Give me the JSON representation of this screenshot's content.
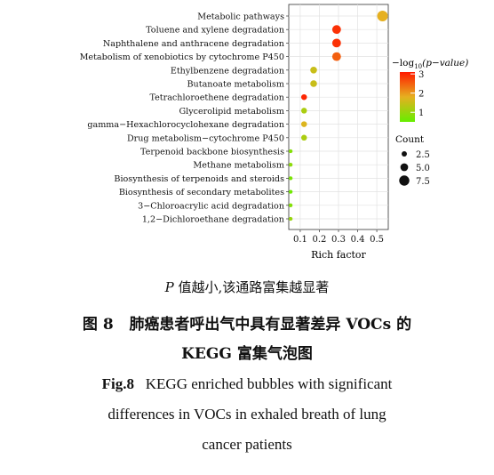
{
  "chart_data": {
    "type": "scatter",
    "categories": [
      "Metabolic pathways",
      "Toluene and xylene degradation",
      "Naphthalene and anthracene degradation",
      "Metabolism of xenobiotics by cytochrome P450",
      "Ethylbenzene degradation",
      "Butanoate metabolism",
      "Tetrachloroethene degradation",
      "Glycerolipid metabolism",
      "gamma−Hexachlorocyclohexane degradation",
      "Drug metabolism−cytochrome P450",
      "Terpenoid backbone biosynthesis",
      "Methane metabolism",
      "Biosynthesis of terpenoids and steroids",
      "Biosynthesis of secondary metabolites",
      "3−Chloroacrylic acid degradation",
      "1,2−Dichloroethane degradation"
    ],
    "rich_factor": [
      0.53,
      0.29,
      0.29,
      0.29,
      0.17,
      0.17,
      0.12,
      0.12,
      0.12,
      0.12,
      0.05,
      0.05,
      0.05,
      0.05,
      0.05,
      0.05
    ],
    "neg_log10_p": [
      1.8,
      2.9,
      2.9,
      2.5,
      1.5,
      1.5,
      3.0,
      1.2,
      1.7,
      1.2,
      0.8,
      0.9,
      0.7,
      0.6,
      0.8,
      1.0
    ],
    "count": [
      8,
      6,
      6,
      6,
      4,
      4,
      3,
      3,
      3,
      3,
      1,
      1,
      1,
      1,
      1,
      1
    ],
    "xlabel": "Rich factor",
    "xticks": [
      "0.1",
      "0.2",
      "0.3",
      "0.4",
      "0.5"
    ],
    "xlim": [
      0.04,
      0.56
    ],
    "grid": true,
    "color_legend": {
      "title_prefix": "−log",
      "title_sub": "10",
      "title_suffix": "(p−value)",
      "ticks": [
        "3",
        "2",
        "1"
      ],
      "range": [
        0.5,
        3.1
      ],
      "color_low": "#66ee00",
      "color_mid": "#e6b020",
      "color_high": "#ff1a00"
    },
    "size_legend": {
      "title": "Count",
      "entries": [
        "2.5",
        "5.0",
        "7.5"
      ],
      "values": [
        2.5,
        5.0,
        7.5
      ]
    }
  },
  "caption": {
    "note_p": "P",
    "note_rest": " 值越小,该通路富集越显著",
    "cn_label": "图 8",
    "cn_line1": "肺癌患者呼出气中具有显著差异 VOCs 的",
    "cn_line2": "KEGG 富集气泡图",
    "en_label": "Fig.8",
    "en_line1": "KEGG enriched bubbles with significant",
    "en_line2": "differences in VOCs in exhaled breath of lung",
    "en_line3": "cancer patients"
  }
}
